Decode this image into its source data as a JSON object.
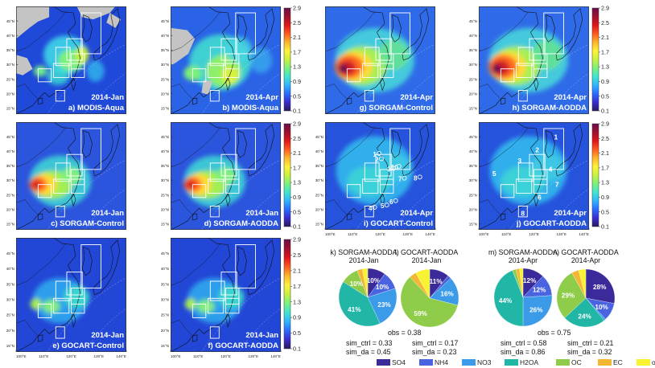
{
  "colorbar": {
    "ticks": [
      "2.9",
      "2.5",
      "2.1",
      "1.7",
      "1.3",
      "0.9",
      "0.5",
      "0.1"
    ],
    "colors": [
      "#2b1a5e",
      "#3a2bd0",
      "#2a6cff",
      "#2fb5ff",
      "#3fe6d0",
      "#79f27a",
      "#c9f23c",
      "#fff23a",
      "#ffb52a",
      "#ff5a1e",
      "#e31419",
      "#a0102e",
      "#6a0e4a"
    ]
  },
  "map_axes": {
    "lat_ticks": [
      "45°N",
      "40°N",
      "35°N",
      "30°N",
      "25°N",
      "20°N",
      "15°N"
    ],
    "lon_ticks": [
      "100°E",
      "110°E",
      "120°E",
      "130°E",
      "140°E"
    ]
  },
  "map_panels": [
    {
      "season": "2014-Jan",
      "label": "a) MODIS-Aqua",
      "style": "modis-jan",
      "lat_axis": true,
      "lon_axis": false,
      "colorbar": false
    },
    {
      "season": "2014-Apr",
      "label": "b) MODIS-Aqua",
      "style": "modis-apr",
      "lat_axis": true,
      "lon_axis": false,
      "colorbar": true
    },
    {
      "season": "2014-Apr",
      "label": "g) SORGAM-Control",
      "style": "sim-apr",
      "lat_axis": false,
      "lon_axis": false,
      "colorbar": false
    },
    {
      "season": "2014-Apr",
      "label": "h) SORGAM-AODDA",
      "style": "sim-apr",
      "lat_axis": true,
      "lon_axis": false,
      "colorbar": true
    },
    {
      "season": "2014-Jan",
      "label": "c) SORGAM-Control",
      "style": "sim-jan",
      "lat_axis": true,
      "lon_axis": false,
      "colorbar": false
    },
    {
      "season": "2014-Jan",
      "label": "d) SORGAM-AODDA",
      "style": "sim-jan",
      "lat_axis": true,
      "lon_axis": false,
      "colorbar": true
    },
    {
      "season": "2014-Apr",
      "label": "i) GOCART-Control",
      "style": "gocart-apr",
      "lat_axis": true,
      "lon_axis": true,
      "colorbar": false,
      "numbers": "i"
    },
    {
      "season": "2014-Apr",
      "label": "j) GOCART-AODDA",
      "style": "gocart-apr",
      "lat_axis": true,
      "lon_axis": true,
      "colorbar": true,
      "numbers": "j"
    },
    {
      "season": "2014-Jan",
      "label": "e) GOCART-Control",
      "style": "gocart-jan",
      "lat_axis": true,
      "lon_axis": true,
      "colorbar": false
    },
    {
      "season": "2014-Jan",
      "label": "f) GOCART-AODDA",
      "style": "gocart-jan",
      "lat_axis": true,
      "lon_axis": true,
      "colorbar": true
    }
  ],
  "species": [
    {
      "name": "SO4",
      "color": "#3b2a9a"
    },
    {
      "name": "NH4",
      "color": "#4a63e0"
    },
    {
      "name": "NO3",
      "color": "#3b9be8"
    },
    {
      "name": "H2OA",
      "color": "#22b6a6"
    },
    {
      "name": "OC",
      "color": "#8fcc4a"
    },
    {
      "name": "EC",
      "color": "#f3b733"
    },
    {
      "name": "others",
      "color": "#f7f232"
    }
  ],
  "chart_data": [
    {
      "type": "pie",
      "title": "k) SORGAM-AODDA",
      "subtitle": "2014-Jan",
      "categories": [
        "SO4",
        "NH4",
        "NO3",
        "H2OA",
        "OC",
        "EC",
        "others"
      ],
      "values": [
        10,
        10,
        23,
        41,
        10,
        3,
        3
      ],
      "labels": [
        "10%",
        "10%",
        "23%",
        "41%",
        "10%",
        "",
        ""
      ]
    },
    {
      "type": "pie",
      "title": "l) GOCART-AODDA",
      "subtitle": "2014-Jan",
      "categories": [
        "SO4",
        "NH4",
        "NO3",
        "H2OA",
        "OC",
        "EC",
        "others"
      ],
      "values": [
        11,
        2,
        16,
        0,
        59,
        4,
        8
      ],
      "labels": [
        "11%",
        "",
        "16%",
        "",
        "59%",
        "",
        ""
      ]
    },
    {
      "type": "pie",
      "title": "m) SORGAM-AODDA",
      "subtitle": "2014-Apr",
      "categories": [
        "SO4",
        "NH4",
        "NO3",
        "H2OA",
        "OC",
        "EC",
        "others"
      ],
      "values": [
        12,
        12,
        26,
        44,
        2,
        2,
        2
      ],
      "labels": [
        "12%",
        "12%",
        "26%",
        "44%",
        "",
        "",
        ""
      ]
    },
    {
      "type": "pie",
      "title": "n) GOCART-AODDA",
      "subtitle": "2014-Apr",
      "categories": [
        "SO4",
        "NH4",
        "NO3",
        "H2OA",
        "OC",
        "EC",
        "others"
      ],
      "values": [
        28,
        10,
        1,
        24,
        29,
        4,
        4
      ],
      "labels": [
        "28%",
        "10%",
        "",
        "24%",
        "29%",
        "",
        ""
      ]
    }
  ],
  "stats": {
    "jan_obs": "obs = 0.38",
    "jan_k_ctrl": "sim_ctrl = 0.33",
    "jan_k_da": "sim_da = 0.45",
    "jan_l_ctrl": "sim_ctrl = 0.17",
    "jan_l_da": "sim_da = 0.23",
    "apr_obs": "obs = 0.75",
    "apr_m_ctrl": "sim_ctrl = 0.58",
    "apr_m_da": "sim_da = 0.86",
    "apr_n_ctrl": "sim_ctrl = 0.21",
    "apr_n_da": "sim_da = 0.32"
  }
}
